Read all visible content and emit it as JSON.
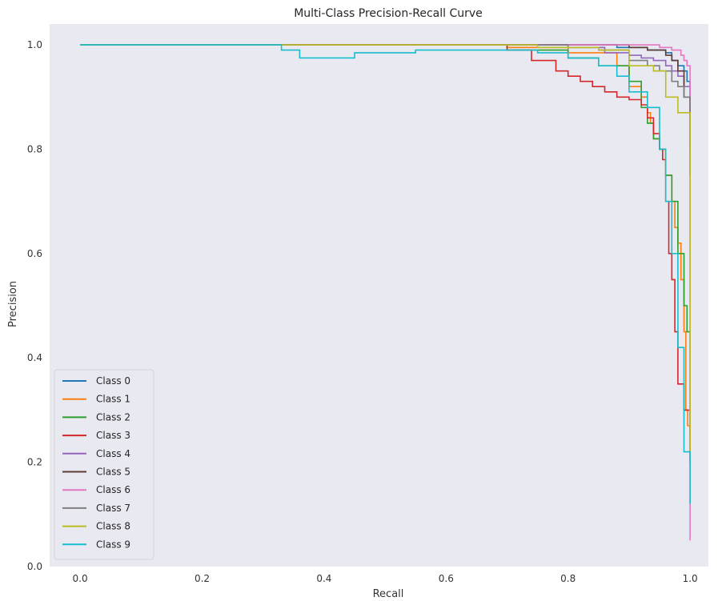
{
  "chart_data": {
    "type": "line",
    "title": "Multi-Class Precision-Recall Curve",
    "xlabel": "Recall",
    "ylabel": "Precision",
    "xlim": [
      -0.05,
      1.03
    ],
    "ylim": [
      0.0,
      1.04
    ],
    "xticks": [
      "0.0",
      "0.2",
      "0.4",
      "0.6",
      "0.8",
      "1.0"
    ],
    "yticks": [
      "0.0",
      "0.2",
      "0.4",
      "0.6",
      "0.8",
      "1.0"
    ],
    "grid": false,
    "legend_position": "lower-left",
    "background_color": "#e9e9f1",
    "series": [
      {
        "name": "Class 0",
        "color": "#1f77b4",
        "x": [
          0,
          0.55,
          0.7,
          0.8,
          0.88,
          0.93,
          0.96,
          0.97,
          0.98,
          0.99,
          0.995,
          1.0,
          1.0
        ],
        "y": [
          1.0,
          1.0,
          1.0,
          1.0,
          0.995,
          0.99,
          0.985,
          0.97,
          0.96,
          0.95,
          0.93,
          0.9,
          0.75
        ]
      },
      {
        "name": "Class 1",
        "color": "#ff7f0e",
        "x": [
          0,
          0.6,
          0.7,
          0.8,
          0.88,
          0.9,
          0.92,
          0.93,
          0.935,
          0.94,
          0.95,
          0.96,
          0.97,
          0.975,
          0.98,
          0.985,
          0.99,
          0.993,
          0.996,
          1.0
        ],
        "y": [
          1.0,
          1.0,
          0.995,
          0.985,
          0.96,
          0.92,
          0.9,
          0.87,
          0.85,
          0.82,
          0.8,
          0.75,
          0.7,
          0.65,
          0.62,
          0.55,
          0.45,
          0.3,
          0.27,
          0.2
        ]
      },
      {
        "name": "Class 2",
        "color": "#2ca02c",
        "x": [
          0,
          0.6,
          0.7,
          0.8,
          0.85,
          0.9,
          0.92,
          0.93,
          0.94,
          0.95,
          0.96,
          0.97,
          0.98,
          0.99,
          0.995,
          1.0
        ],
        "y": [
          1.0,
          1.0,
          0.99,
          0.975,
          0.96,
          0.93,
          0.88,
          0.85,
          0.82,
          0.8,
          0.75,
          0.7,
          0.6,
          0.5,
          0.45,
          0.25
        ]
      },
      {
        "name": "Class 3",
        "color": "#d62728",
        "x": [
          0,
          0.55,
          0.7,
          0.74,
          0.78,
          0.8,
          0.82,
          0.84,
          0.86,
          0.88,
          0.9,
          0.92,
          0.93,
          0.94,
          0.95,
          0.955,
          0.96,
          0.965,
          0.97,
          0.975,
          0.98,
          0.99,
          1.0
        ],
        "y": [
          1.0,
          1.0,
          0.99,
          0.97,
          0.95,
          0.94,
          0.93,
          0.92,
          0.91,
          0.9,
          0.895,
          0.885,
          0.86,
          0.83,
          0.8,
          0.78,
          0.7,
          0.6,
          0.55,
          0.45,
          0.35,
          0.3,
          0.2
        ]
      },
      {
        "name": "Class 4",
        "color": "#9467bd",
        "x": [
          0,
          0.7,
          0.8,
          0.86,
          0.9,
          0.92,
          0.94,
          0.96,
          0.97,
          0.98,
          0.99,
          1.0,
          1.0
        ],
        "y": [
          1.0,
          1.0,
          0.995,
          0.985,
          0.98,
          0.975,
          0.97,
          0.96,
          0.95,
          0.94,
          0.92,
          0.9,
          0.8
        ]
      },
      {
        "name": "Class 5",
        "color": "#5c3a36",
        "x": [
          0,
          0.7,
          0.85,
          0.9,
          0.93,
          0.96,
          0.97,
          0.98,
          0.99,
          1.0
        ],
        "y": [
          1.0,
          1.0,
          1.0,
          0.995,
          0.99,
          0.98,
          0.97,
          0.95,
          0.9,
          0.8
        ]
      },
      {
        "name": "Class 6",
        "color": "#e377c2",
        "x": [
          0,
          0.8,
          0.9,
          0.95,
          0.97,
          0.985,
          0.99,
          0.995,
          1.0,
          1.0
        ],
        "y": [
          1.0,
          1.0,
          1.0,
          0.995,
          0.99,
          0.98,
          0.97,
          0.96,
          0.9,
          0.05
        ]
      },
      {
        "name": "Class 7",
        "color": "#7f7f7f",
        "x": [
          0,
          0.7,
          0.8,
          0.85,
          0.9,
          0.93,
          0.95,
          0.97,
          0.98,
          0.99,
          1.0
        ],
        "y": [
          1.0,
          1.0,
          0.995,
          0.99,
          0.97,
          0.96,
          0.95,
          0.93,
          0.92,
          0.9,
          0.75
        ]
      },
      {
        "name": "Class 8",
        "color": "#bcbd22",
        "x": [
          0,
          0.43,
          0.6,
          0.75,
          0.85,
          0.9,
          0.94,
          0.96,
          0.98,
          1.0,
          1.0
        ],
        "y": [
          1.0,
          1.0,
          1.0,
          0.995,
          0.99,
          0.96,
          0.95,
          0.9,
          0.87,
          0.86,
          0.22
        ]
      },
      {
        "name": "Class 9",
        "color": "#17becf",
        "x": [
          0,
          0.32,
          0.33,
          0.36,
          0.45,
          0.55,
          0.65,
          0.75,
          0.8,
          0.85,
          0.88,
          0.9,
          0.93,
          0.95,
          0.96,
          0.97,
          0.98,
          0.99,
          1.0
        ],
        "y": [
          1.0,
          1.0,
          0.99,
          0.975,
          0.985,
          0.99,
          0.99,
          0.985,
          0.975,
          0.96,
          0.94,
          0.91,
          0.88,
          0.8,
          0.7,
          0.6,
          0.42,
          0.22,
          0.12
        ]
      }
    ]
  }
}
